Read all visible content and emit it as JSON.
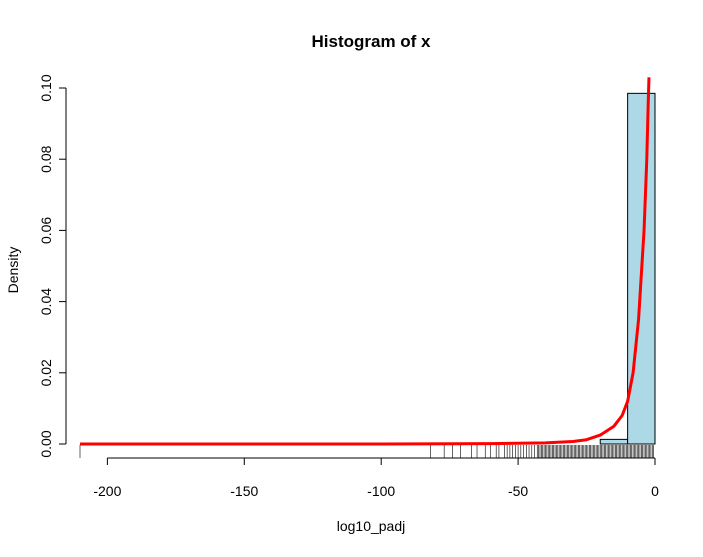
{
  "chart_data": {
    "type": "histogram",
    "title": "Histogram of x",
    "xlabel": "log10_padj",
    "ylabel": "Density",
    "xlim": [
      -210,
      0
    ],
    "ylim": [
      0,
      0.1
    ],
    "x_ticks": [
      -200,
      -150,
      -100,
      -50,
      0
    ],
    "x_tick_labels": [
      "-200",
      "-150",
      "-100",
      "-50",
      "0"
    ],
    "y_ticks": [
      0,
      0.02,
      0.04,
      0.06,
      0.08,
      0.1
    ],
    "y_tick_labels": [
      "0.00",
      "0.02",
      "0.04",
      "0.06",
      "0.08",
      "0.10"
    ],
    "bins": [
      {
        "x0": -20,
        "x1": -10,
        "density": 0.0013
      },
      {
        "x0": -10,
        "x1": 0,
        "density": 0.0985
      }
    ],
    "density_curve": {
      "color": "#ff0000",
      "points": [
        [
          -210,
          0
        ],
        [
          -100,
          0
        ],
        [
          -60,
          0.0001
        ],
        [
          -40,
          0.0003
        ],
        [
          -30,
          0.0007
        ],
        [
          -25,
          0.0012
        ],
        [
          -20,
          0.0025
        ],
        [
          -15,
          0.005
        ],
        [
          -12,
          0.008
        ],
        [
          -10,
          0.012
        ],
        [
          -8,
          0.02
        ],
        [
          -6,
          0.035
        ],
        [
          -4,
          0.06
        ],
        [
          -3,
          0.08
        ],
        [
          -2.5,
          0.095
        ],
        [
          -2.2,
          0.103
        ]
      ]
    },
    "rug": [
      -210,
      -82,
      -77,
      -74,
      -71,
      -67,
      -65,
      -62,
      -60,
      -58,
      -57,
      -55,
      -54,
      -53,
      -52,
      -51,
      -50,
      -49,
      -48,
      -47,
      -46,
      -45,
      -44,
      -43,
      -42.5,
      -42,
      -41.5,
      -41,
      -40.5,
      -40,
      -39.5,
      -39,
      -38.5,
      -38,
      -37.5,
      -37,
      -36.5,
      -36,
      -35.5,
      -35,
      -34.5,
      -34,
      -33.5,
      -33,
      -32.5,
      -32,
      -31.5,
      -31,
      -30.5,
      -30,
      -29.5,
      -29,
      -28.5,
      -28,
      -27.5,
      -27,
      -26.5,
      -26,
      -25.5,
      -25,
      -24.5,
      -24,
      -23.5,
      -23,
      -22.5,
      -22,
      -21.5,
      -21,
      -20.5,
      -20,
      -19.5,
      -19,
      -18.5,
      -18,
      -17.5,
      -17,
      -16.5,
      -16,
      -15.5,
      -15,
      -14.5,
      -14,
      -13.5,
      -13,
      -12.5,
      -12,
      -11.5,
      -11,
      -10.5,
      -10,
      -9.5,
      -9,
      -8.5,
      -8,
      -7.5,
      -7,
      -6.5,
      -6,
      -5.5,
      -5,
      -4.5,
      -4,
      -3.5,
      -3,
      -2.5,
      -2,
      -1.5,
      -1,
      -0.5
    ],
    "colors": {
      "bar_fill": "#add8e6",
      "bar_stroke": "#000000",
      "curve": "#ff0000",
      "axis": "#000000"
    }
  }
}
